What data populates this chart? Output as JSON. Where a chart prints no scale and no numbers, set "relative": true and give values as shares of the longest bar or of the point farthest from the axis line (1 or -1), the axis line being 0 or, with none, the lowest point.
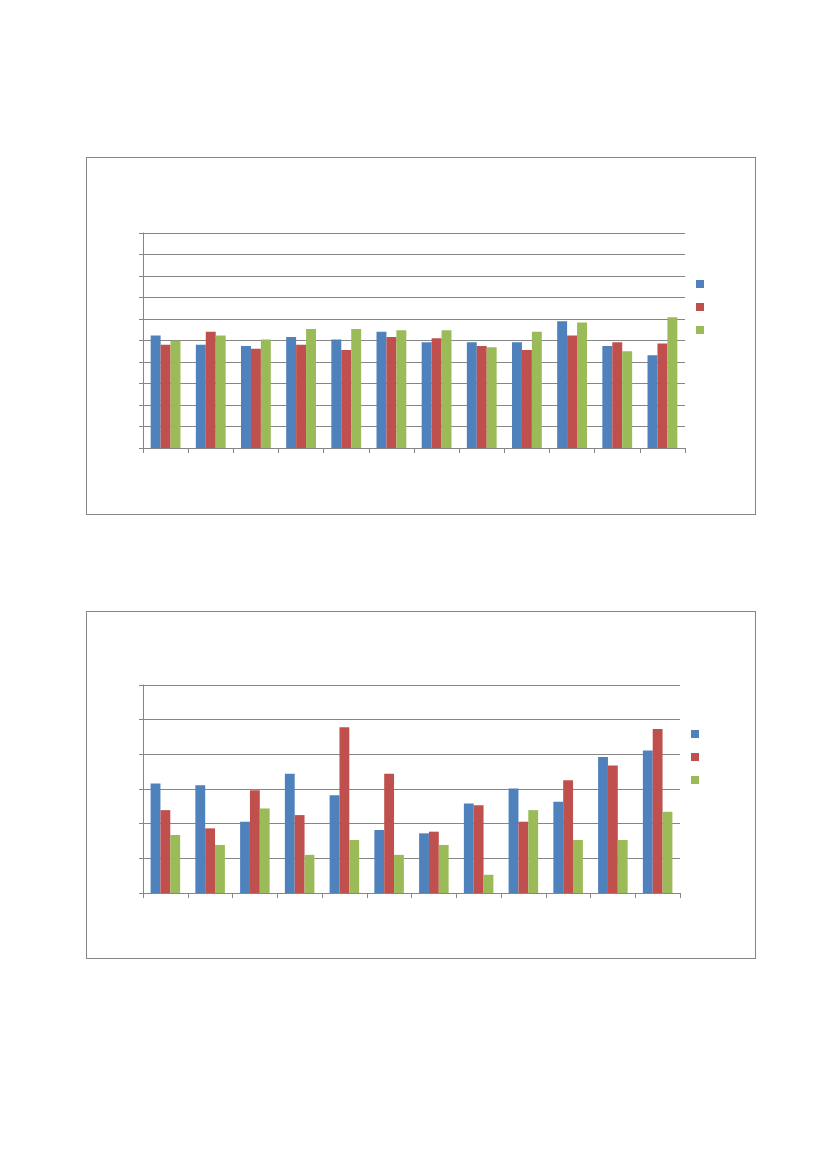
{
  "chart_data": [
    {
      "type": "bar",
      "relative": true,
      "grid": "y",
      "categories": [
        null,
        null,
        null,
        null,
        null,
        null,
        null,
        null,
        null,
        null,
        null,
        null
      ],
      "series": [
        {
          "color": "#4f81bd",
          "values": [
            0.86,
            0.79,
            0.78,
            0.85,
            0.83,
            0.89,
            0.81,
            0.81,
            0.81,
            0.97,
            0.78,
            0.71
          ]
        },
        {
          "color": "#c0504d",
          "values": [
            0.79,
            0.89,
            0.76,
            0.79,
            0.75,
            0.85,
            0.84,
            0.78,
            0.75,
            0.86,
            0.81,
            0.8
          ]
        },
        {
          "color": "#9bbb59",
          "values": [
            0.82,
            0.86,
            0.83,
            0.91,
            0.91,
            0.9,
            0.9,
            0.77,
            0.89,
            0.96,
            0.74,
            1
          ]
        }
      ]
    },
    {
      "type": "bar",
      "relative": true,
      "grid": "y",
      "categories": [
        null,
        null,
        null,
        null,
        null,
        null,
        null,
        null,
        null,
        null,
        null,
        null
      ],
      "series": [
        {
          "color": "#4f81bd",
          "values": [
            0.66,
            0.65,
            0.43,
            0.72,
            0.59,
            0.38,
            0.36,
            0.54,
            0.63,
            0.55,
            0.82,
            0.86
          ]
        },
        {
          "color": "#c0504d",
          "values": [
            0.5,
            0.39,
            0.62,
            0.47,
            1,
            0.72,
            0.37,
            0.53,
            0.43,
            0.68,
            0.77,
            0.99
          ]
        },
        {
          "color": "#9bbb59",
          "values": [
            0.35,
            0.29,
            0.51,
            0.23,
            0.32,
            0.23,
            0.29,
            0.11,
            0.5,
            0.32,
            0.32,
            0.49
          ]
        }
      ]
    }
  ]
}
